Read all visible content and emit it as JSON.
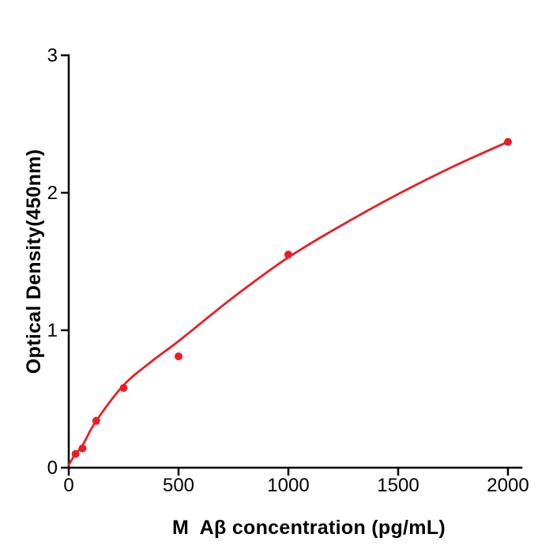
{
  "page": {
    "background_color": "#ffffff",
    "text_color": "#000000"
  },
  "chart_data": {
    "type": "scatter",
    "title": "",
    "xlabel": "M  Aβ concentration (pg/mL)",
    "ylabel": "Optical Density(450nm)",
    "xlim": [
      0,
      2060
    ],
    "ylim": [
      0,
      3
    ],
    "x_ticks": [
      0,
      500,
      1000,
      1500,
      2000
    ],
    "y_ticks": [
      0,
      1,
      2,
      3
    ],
    "grid": false,
    "legend": null,
    "axis_color": "#000000",
    "series": [
      {
        "name": "standard-points",
        "kind": "scatter",
        "color": "#ed1c24",
        "marker": "circle",
        "points": [
          [
            31.25,
            0.1
          ],
          [
            62.5,
            0.14
          ],
          [
            125,
            0.34
          ],
          [
            250,
            0.58
          ],
          [
            500,
            0.81
          ],
          [
            1000,
            1.55
          ],
          [
            2000,
            2.37
          ]
        ]
      },
      {
        "name": "fitted-curve",
        "kind": "line",
        "color": "#ed1c24",
        "points": [
          [
            0,
            0.02
          ],
          [
            31,
            0.1
          ],
          [
            62,
            0.16
          ],
          [
            125,
            0.34
          ],
          [
            250,
            0.6
          ],
          [
            375,
            0.77
          ],
          [
            500,
            0.92
          ],
          [
            750,
            1.24
          ],
          [
            1000,
            1.53
          ],
          [
            1250,
            1.77
          ],
          [
            1500,
            1.99
          ],
          [
            1750,
            2.19
          ],
          [
            2000,
            2.37
          ]
        ]
      }
    ]
  }
}
